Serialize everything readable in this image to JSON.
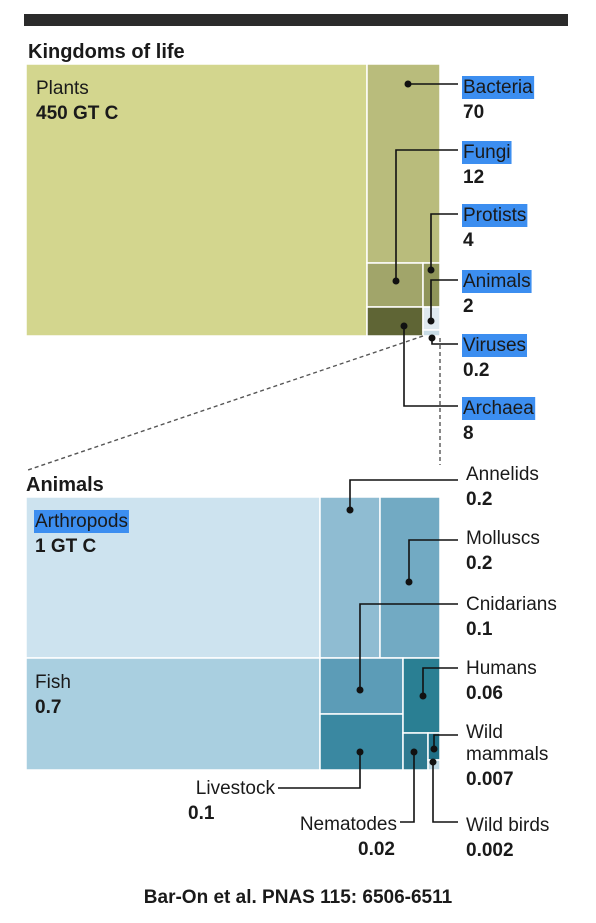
{
  "chart_data": [
    {
      "type": "treemap",
      "title": "Kingdoms of life",
      "unit": "GT C",
      "items": [
        {
          "name": "Plants",
          "value": 450,
          "value_label": "450 GT C",
          "color": "#d3d68e"
        },
        {
          "name": "Bacteria",
          "value": 70,
          "value_label": "70",
          "color": "#b9bc7c"
        },
        {
          "name": "Fungi",
          "value": 12,
          "value_label": "12",
          "color": "#a1a56a"
        },
        {
          "name": "Protists",
          "value": 4,
          "value_label": "4",
          "color": "#8f9459"
        },
        {
          "name": "Animals",
          "value": 2,
          "value_label": "2",
          "color": "#dfe9ef"
        },
        {
          "name": "Viruses",
          "value": 0.2,
          "value_label": "0.2",
          "color": "#c9dce6"
        },
        {
          "name": "Archaea",
          "value": 8,
          "value_label": "8",
          "color": "#5f6535"
        }
      ],
      "highlighted": [
        "Bacteria",
        "Fungi",
        "Protists",
        "Animals",
        "Viruses",
        "Archaea"
      ]
    },
    {
      "type": "treemap",
      "title": "Animals",
      "unit": "GT C",
      "items": [
        {
          "name": "Arthropods",
          "value": 1,
          "value_label": "1 GT C",
          "color": "#cde3ef"
        },
        {
          "name": "Fish",
          "value": 0.7,
          "value_label": "0.7",
          "color": "#a9cfe0"
        },
        {
          "name": "Annelids",
          "value": 0.2,
          "value_label": "0.2",
          "color": "#8fbcd2"
        },
        {
          "name": "Molluscs",
          "value": 0.2,
          "value_label": "0.2",
          "color": "#72aac3"
        },
        {
          "name": "Cnidarians",
          "value": 0.1,
          "value_label": "0.1",
          "color": "#5c9cb7"
        },
        {
          "name": "Humans",
          "value": 0.06,
          "value_label": "0.06",
          "color": "#2a7f93"
        },
        {
          "name": "Livestock",
          "value": 0.1,
          "value_label": "0.1",
          "color": "#3a88a1"
        },
        {
          "name": "Nematodes",
          "value": 0.02,
          "value_label": "0.02",
          "color": "#2f7a90"
        },
        {
          "name": "Wild mammals",
          "value": 0.007,
          "value_label": "0.007",
          "color": "#1f6f86"
        },
        {
          "name": "Wild birds",
          "value": 0.002,
          "value_label": "0.002",
          "color": "#bcd7e3"
        }
      ],
      "highlighted": [
        "Arthropods"
      ]
    }
  ],
  "citation": "Bar-On et al. PNAS 115: 6506-6511",
  "colors": {
    "top_bar": "#2b2b2b",
    "highlight": "#3c8ef0",
    "leader": "#111111"
  }
}
